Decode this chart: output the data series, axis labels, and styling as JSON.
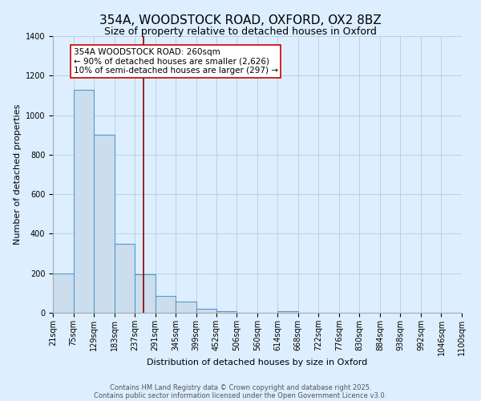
{
  "title": "354A, WOODSTOCK ROAD, OXFORD, OX2 8BZ",
  "subtitle": "Size of property relative to detached houses in Oxford",
  "xlabel": "Distribution of detached houses by size in Oxford",
  "ylabel": "Number of detached properties",
  "bin_edges": [
    21,
    75,
    129,
    183,
    237,
    291,
    345,
    399,
    452,
    506,
    560,
    614,
    668,
    722,
    776,
    830,
    884,
    938,
    992,
    1046,
    1100
  ],
  "bar_heights": [
    200,
    1130,
    900,
    350,
    195,
    85,
    55,
    20,
    10,
    0,
    0,
    8,
    0,
    0,
    0,
    0,
    0,
    0,
    0,
    0
  ],
  "bar_color": "#ccdded",
  "bar_edge_color": "#5599cc",
  "bar_linewidth": 0.8,
  "grid_color": "#b8ccdc",
  "background_color": "#ddeeff",
  "property_size": 260,
  "vline_color": "#8b0000",
  "vline_linewidth": 1.2,
  "annotation_text": "354A WOODSTOCK ROAD: 260sqm\n← 90% of detached houses are smaller (2,626)\n10% of semi-detached houses are larger (297) →",
  "annotation_box_color": "white",
  "annotation_box_edge": "#cc0000",
  "ylim": [
    0,
    1400
  ],
  "yticks": [
    0,
    200,
    400,
    600,
    800,
    1000,
    1200,
    1400
  ],
  "tick_labels": [
    "21sqm",
    "75sqm",
    "129sqm",
    "183sqm",
    "237sqm",
    "291sqm",
    "345sqm",
    "399sqm",
    "452sqm",
    "506sqm",
    "560sqm",
    "614sqm",
    "668sqm",
    "722sqm",
    "776sqm",
    "830sqm",
    "884sqm",
    "938sqm",
    "992sqm",
    "1046sqm",
    "1100sqm"
  ],
  "footer_line1": "Contains HM Land Registry data © Crown copyright and database right 2025.",
  "footer_line2": "Contains public sector information licensed under the Open Government Licence v3.0.",
  "title_fontsize": 11,
  "subtitle_fontsize": 9,
  "axis_label_fontsize": 8,
  "tick_fontsize": 7,
  "annotation_fontsize": 7.5,
  "footer_fontsize": 6
}
